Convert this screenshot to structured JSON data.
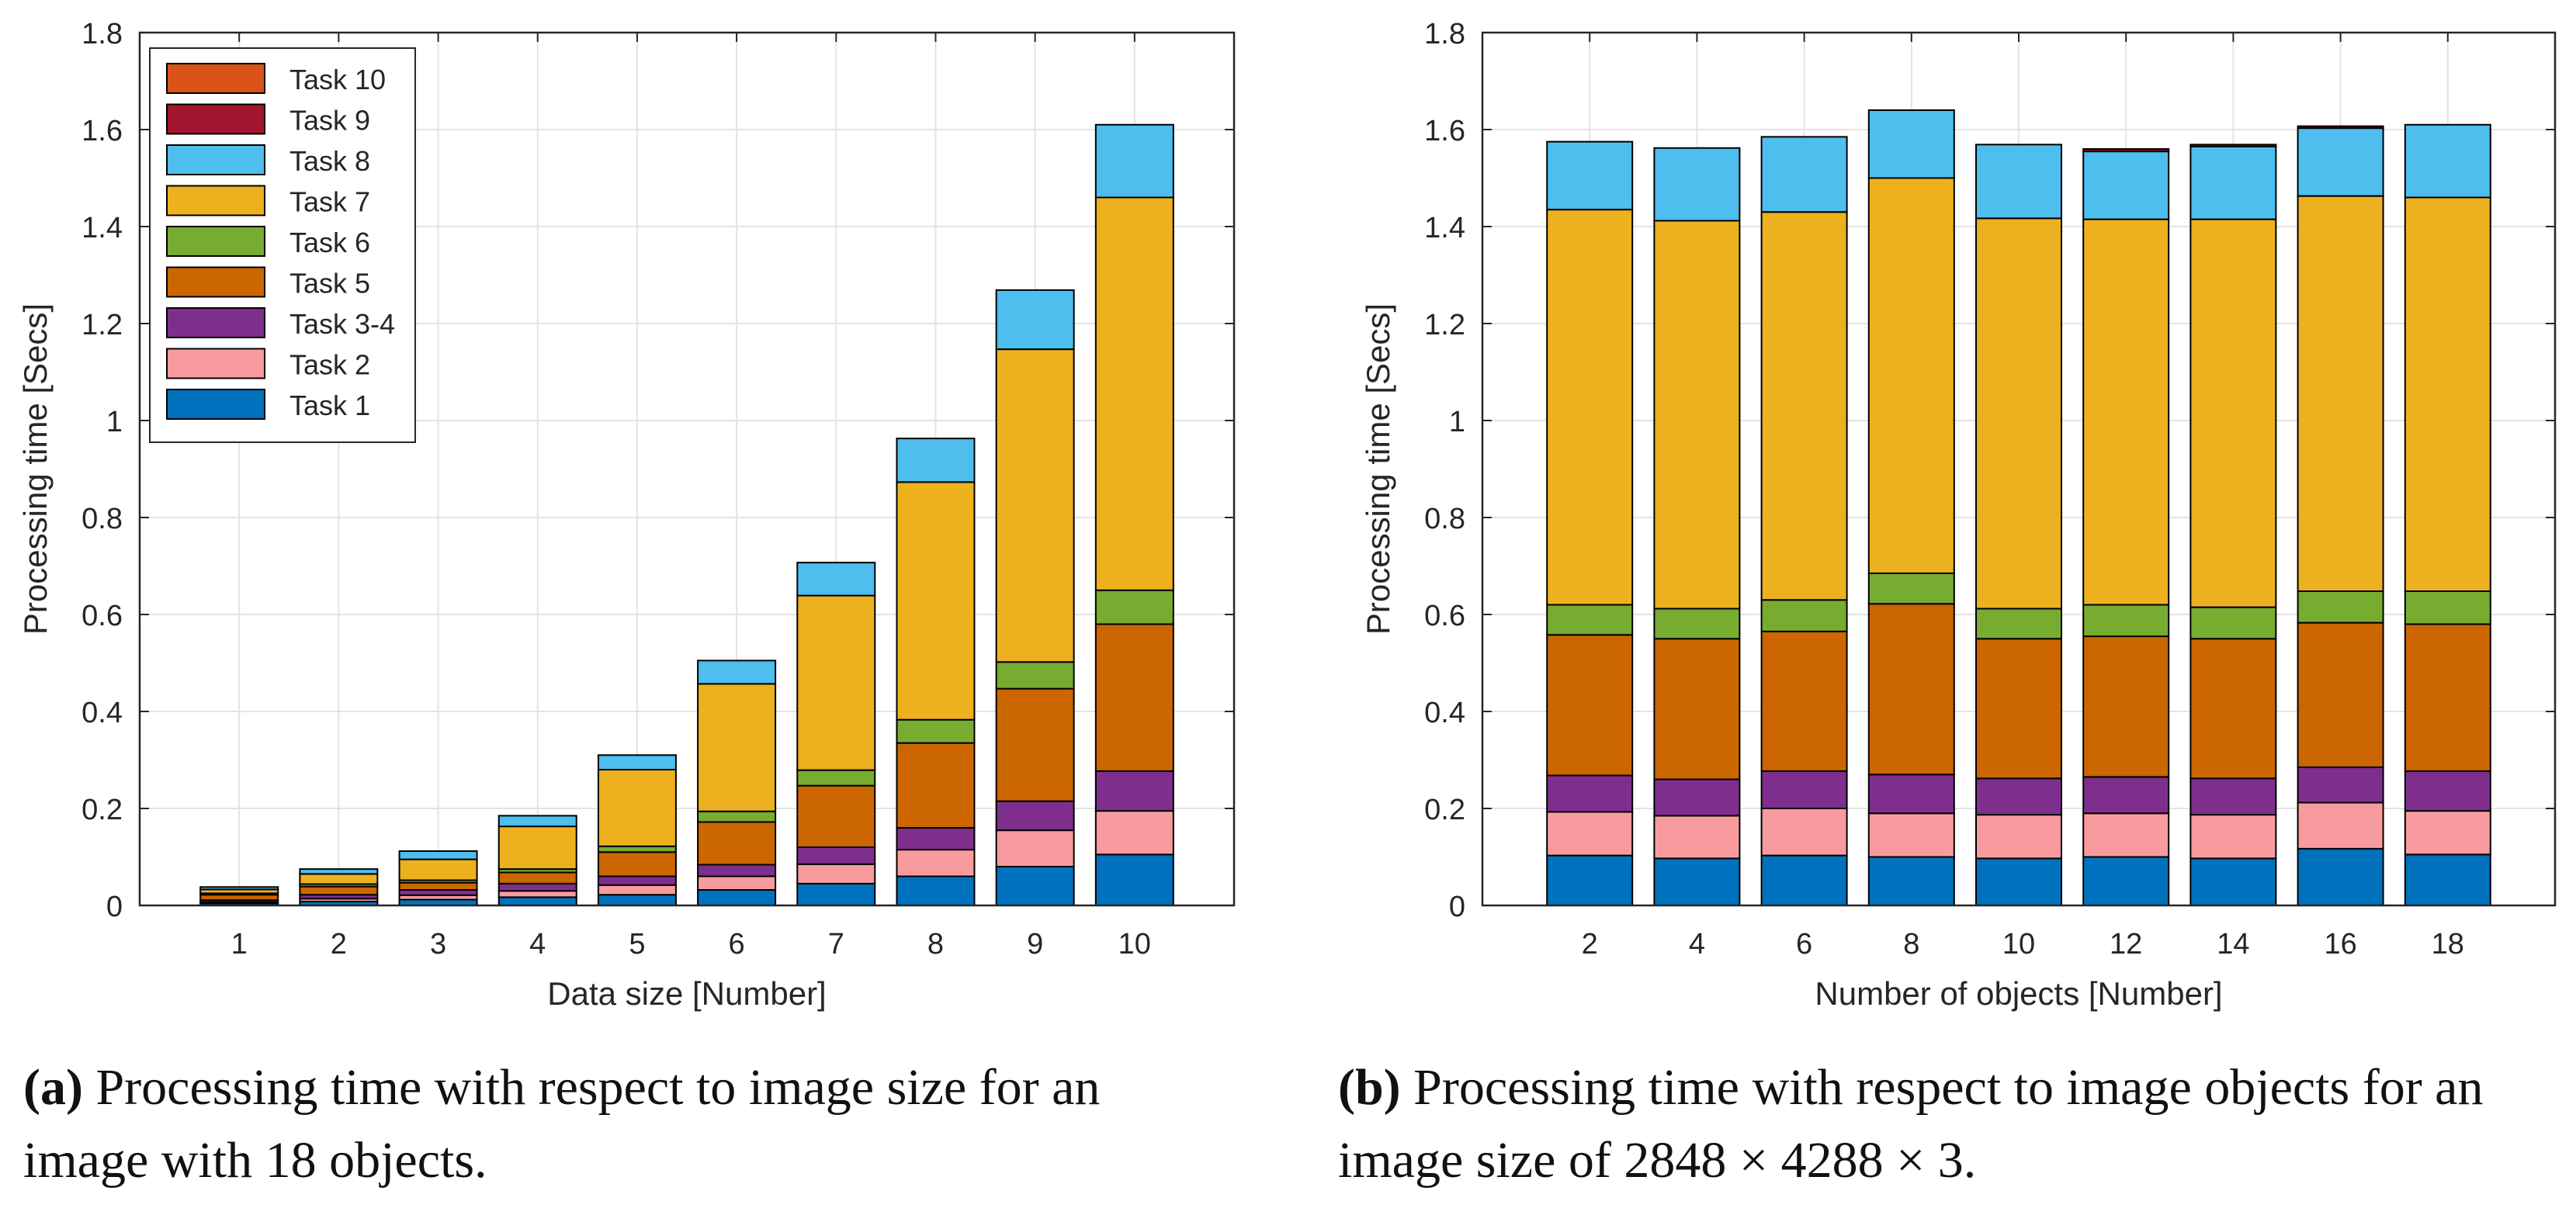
{
  "chart_data": [
    {
      "type": "bar",
      "stacked": true,
      "xlabel": "Data size [Number]",
      "ylabel": "Processing time [Secs]",
      "ylim": [
        0,
        1.8
      ],
      "yticks": [
        "0",
        "0.2",
        "0.4",
        "0.6",
        "0.8",
        "1",
        "1.2",
        "1.4",
        "1.6",
        "1.8"
      ],
      "grid": true,
      "legend_position": "top-left",
      "categories": [
        "1",
        "2",
        "3",
        "4",
        "5",
        "6",
        "7",
        "8",
        "9",
        "10"
      ],
      "series": [
        {
          "name": "Task 1",
          "color": "#0072BD",
          "values": [
            0.004,
            0.008,
            0.012,
            0.017,
            0.022,
            0.032,
            0.045,
            0.06,
            0.08,
            0.105
          ]
        },
        {
          "name": "Task 2",
          "color": "#F89B9F",
          "values": [
            0.003,
            0.006,
            0.009,
            0.013,
            0.02,
            0.028,
            0.04,
            0.055,
            0.075,
            0.09
          ]
        },
        {
          "name": "Task 3-4",
          "color": "#7E2F8E",
          "values": [
            0.004,
            0.008,
            0.011,
            0.015,
            0.018,
            0.024,
            0.035,
            0.045,
            0.06,
            0.082
          ]
        },
        {
          "name": "Task 5",
          "color": "#CC6600",
          "values": [
            0.011,
            0.017,
            0.015,
            0.023,
            0.05,
            0.088,
            0.127,
            0.175,
            0.232,
            0.303
          ]
        },
        {
          "name": "Task 6",
          "color": "#77AC30",
          "values": [
            0.003,
            0.005,
            0.005,
            0.007,
            0.012,
            0.022,
            0.032,
            0.048,
            0.055,
            0.07
          ]
        },
        {
          "name": "Task 7",
          "color": "#EDB120",
          "values": [
            0.008,
            0.021,
            0.043,
            0.088,
            0.158,
            0.263,
            0.36,
            0.49,
            0.645,
            0.81
          ]
        },
        {
          "name": "Task 8",
          "color": "#4DBEEE",
          "values": [
            0.005,
            0.01,
            0.017,
            0.022,
            0.03,
            0.048,
            0.068,
            0.09,
            0.122,
            0.15
          ]
        },
        {
          "name": "Task 9",
          "color": "#A2142F",
          "values": [
            0,
            0,
            0,
            0,
            0,
            0,
            0,
            0,
            0,
            0
          ]
        },
        {
          "name": "Task 10",
          "color": "#D95319",
          "values": [
            0,
            0,
            0,
            0,
            0,
            0,
            0,
            0,
            0,
            0
          ]
        }
      ]
    },
    {
      "type": "bar",
      "stacked": true,
      "xlabel": "Number of objects [Number]",
      "ylabel": "Processing time [Secs]",
      "ylim": [
        0,
        1.8
      ],
      "yticks": [
        "0",
        "0.2",
        "0.4",
        "0.6",
        "0.8",
        "1",
        "1.2",
        "1.4",
        "1.6",
        "1.8"
      ],
      "grid": true,
      "categories": [
        "2",
        "4",
        "6",
        "8",
        "10",
        "12",
        "14",
        "16",
        "18"
      ],
      "series": [
        {
          "name": "Task 1",
          "color": "#0072BD",
          "values": [
            0.103,
            0.097,
            0.103,
            0.1,
            0.097,
            0.1,
            0.097,
            0.117,
            0.105
          ]
        },
        {
          "name": "Task 2",
          "color": "#F89B9F",
          "values": [
            0.09,
            0.088,
            0.097,
            0.09,
            0.09,
            0.09,
            0.09,
            0.095,
            0.09
          ]
        },
        {
          "name": "Task 3-4",
          "color": "#7E2F8E",
          "values": [
            0.075,
            0.075,
            0.077,
            0.08,
            0.075,
            0.075,
            0.075,
            0.073,
            0.082
          ]
        },
        {
          "name": "Task 5",
          "color": "#CC6600",
          "values": [
            0.29,
            0.29,
            0.288,
            0.352,
            0.288,
            0.29,
            0.288,
            0.298,
            0.303
          ]
        },
        {
          "name": "Task 6",
          "color": "#77AC30",
          "values": [
            0.062,
            0.062,
            0.065,
            0.063,
            0.062,
            0.065,
            0.065,
            0.065,
            0.068
          ]
        },
        {
          "name": "Task 7",
          "color": "#EDB120",
          "values": [
            0.815,
            0.8,
            0.8,
            0.815,
            0.805,
            0.795,
            0.8,
            0.815,
            0.812
          ]
        },
        {
          "name": "Task 8",
          "color": "#4DBEEE",
          "values": [
            0.14,
            0.15,
            0.155,
            0.14,
            0.152,
            0.14,
            0.15,
            0.14,
            0.15
          ]
        },
        {
          "name": "Task 9",
          "color": "#A2142F",
          "values": [
            0,
            0,
            0,
            0,
            0,
            0.005,
            0.004,
            0.004,
            0
          ]
        },
        {
          "name": "Task 10",
          "color": "#D95319",
          "values": [
            0,
            0,
            0,
            0,
            0,
            0,
            0,
            0,
            0
          ]
        }
      ]
    }
  ],
  "captions": {
    "a": {
      "label": "(a)",
      "text": "Processing time with respect to image size for an image with 18 objects."
    },
    "b": {
      "label": "(b)",
      "text": "Processing time with respect to image objects for an image size of 2848 × 4288 × 3."
    }
  }
}
